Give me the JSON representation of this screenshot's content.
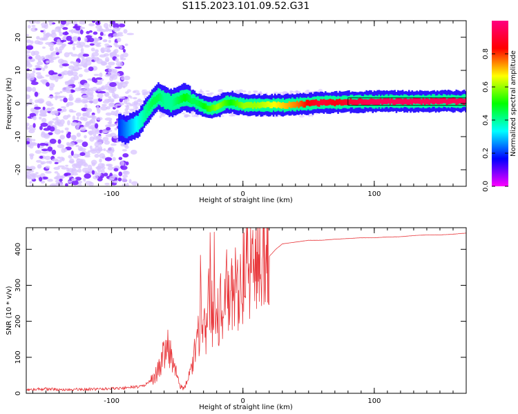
{
  "title": "S115.2023.101.09.52.G31",
  "colors": {
    "snr_line": "#e8363a",
    "ridge": "#e8363a",
    "noise_light": "#d8c4ff",
    "noise_dark": "#7a22ff",
    "axis": "#000000"
  },
  "chart_data": [
    {
      "type": "heatmap",
      "xlabel": "Height of straight line (km)",
      "ylabel": "Frequency (Hz)",
      "xlim": [
        -165,
        170
      ],
      "ylim": [
        -25,
        25
      ],
      "x_ticks": [
        -100,
        0,
        100
      ],
      "y_ticks": [
        -20,
        -10,
        0,
        10,
        20
      ],
      "grid": false,
      "colorbar": {
        "label": "Normalized spectral amplitude",
        "range": [
          0.0,
          1.0
        ],
        "ticks": [
          0.0,
          0.2,
          0.4,
          0.6,
          0.8
        ],
        "colormap": [
          "#ff00ff",
          "#0000ff",
          "#00ffff",
          "#00ff00",
          "#ffff00",
          "#ff0000",
          "#ff0080"
        ]
      },
      "ridge": {
        "x": [
          -95,
          -90,
          -85,
          -80,
          -75,
          -70,
          -65,
          -60,
          -55,
          -50,
          -45,
          -40,
          -35,
          -30,
          -25,
          -20,
          -15,
          -10,
          -5,
          0,
          10,
          20,
          30,
          40,
          50,
          60,
          70,
          80,
          100,
          120,
          140,
          170
        ],
        "freq": [
          -7,
          -8,
          -7,
          -6,
          -3,
          0,
          2,
          1,
          0,
          1,
          2,
          1,
          0,
          -1,
          -1.5,
          -1,
          0,
          0.5,
          0,
          -0.5,
          -0.5,
          -0.5,
          -0.5,
          -0.3,
          0,
          0.2,
          0.3,
          0.5,
          0.6,
          0.6,
          0.7,
          0.7
        ],
        "amplitude": [
          0.2,
          0.25,
          0.3,
          0.35,
          0.4,
          0.45,
          0.45,
          0.4,
          0.4,
          0.45,
          0.5,
          0.45,
          0.45,
          0.5,
          0.55,
          0.6,
          0.55,
          0.5,
          0.55,
          0.6,
          0.6,
          0.65,
          0.7,
          0.75,
          0.85,
          0.9,
          0.85,
          0.9,
          0.95,
          0.95,
          0.95,
          0.95
        ]
      }
    },
    {
      "type": "line",
      "xlabel": "Height of straight line (km)",
      "ylabel": "SNR (10 * v/v)",
      "xlim": [
        -165,
        170
      ],
      "ylim": [
        0,
        460
      ],
      "x_ticks": [
        -100,
        0,
        100
      ],
      "y_ticks": [
        0,
        100,
        200,
        300,
        400
      ],
      "grid": false,
      "series": [
        {
          "x": [
            -165,
            -150,
            -135,
            -120,
            -105,
            -90,
            -80,
            -75,
            -70,
            -65,
            -62,
            -60,
            -58,
            -55,
            -52,
            -50,
            -48,
            -45,
            -42,
            -40,
            -38,
            -35,
            -33,
            -32,
            -30,
            -28,
            -27,
            -25,
            -23,
            -22,
            -20,
            -18,
            -15,
            -12,
            -10,
            -8,
            -5,
            -2,
            0,
            5,
            10,
            15,
            17,
            20,
            25,
            30,
            40,
            50,
            60,
            70,
            80,
            90,
            100,
            110,
            120,
            130,
            140,
            150,
            160,
            170
          ],
          "y": [
            10,
            12,
            10,
            11,
            12,
            15,
            18,
            22,
            35,
            60,
            90,
            120,
            150,
            110,
            70,
            40,
            20,
            15,
            30,
            60,
            90,
            130,
            180,
            350,
            200,
            160,
            240,
            310,
            200,
            360,
            240,
            220,
            260,
            280,
            250,
            270,
            300,
            310,
            330,
            350,
            360,
            370,
            430,
            380,
            400,
            415,
            420,
            425,
            425,
            428,
            430,
            432,
            432,
            434,
            435,
            438,
            440,
            440,
            442,
            445
          ]
        }
      ]
    }
  ]
}
